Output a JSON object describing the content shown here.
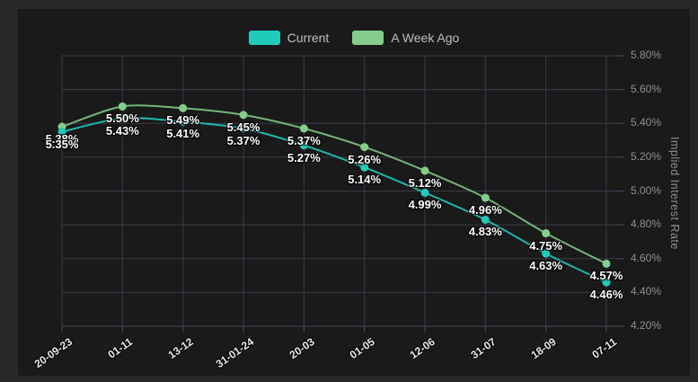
{
  "window": {
    "outer_background": "#282828"
  },
  "chart": {
    "panel_background": "#1a1a1a",
    "grid_color": "#3a3a4c",
    "axis_line_color": "#4a4a5e",
    "tick_text_color": "#8f8f8f",
    "x_label_color": "#eaeaea",
    "data_label_color": "#ffffff",
    "legend_text_color": "#bfbfbf"
  },
  "chart_data": {
    "type": "line",
    "title": "",
    "categories": [
      "20-09-23",
      "01-11",
      "13-12",
      "31-01-24",
      "20-03",
      "01-05",
      "12-06",
      "31-07",
      "18-09",
      "07-11"
    ],
    "series": [
      {
        "name": "Current",
        "color": "#1db8ac",
        "marker_color": "#21cbbc",
        "values": [
          5.35,
          5.43,
          5.41,
          5.37,
          5.27,
          5.14,
          4.99,
          4.83,
          4.63,
          4.46
        ]
      },
      {
        "name": "A Week Ago",
        "color": "#74b578",
        "marker_color": "#85cd8b",
        "values": [
          5.38,
          5.5,
          5.49,
          5.45,
          5.37,
          5.26,
          5.12,
          4.96,
          4.75,
          4.57
        ]
      }
    ],
    "xlabel": "",
    "ylabel": "Implied Interest Rate",
    "ylim": [
      4.2,
      5.8
    ],
    "y_ticks": [
      "5.80%",
      "5.60%",
      "5.40%",
      "5.20%",
      "5.00%",
      "4.80%",
      "4.60%",
      "4.40%",
      "4.20%"
    ],
    "x_label_rotation": -35,
    "data_label_format": "value.toFixed(2) + %",
    "legend_position": "top-center",
    "grid": true
  }
}
